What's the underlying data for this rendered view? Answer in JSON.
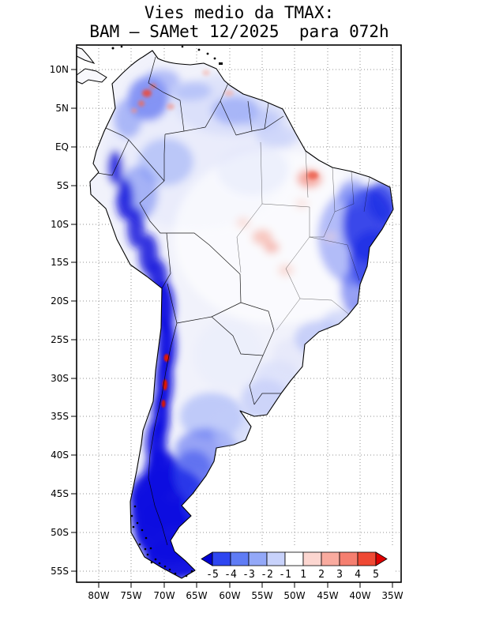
{
  "title": {
    "line1": "Vies medio da TMAX:",
    "line2": "BAM – SAMet 12/2025  para 072h"
  },
  "axes": {
    "lat_ticks": [
      "10N",
      "5N",
      "EQ",
      "5S",
      "10S",
      "15S",
      "20S",
      "25S",
      "30S",
      "35S",
      "40S",
      "45S",
      "50S",
      "55S"
    ],
    "lon_ticks": [
      "80W",
      "75W",
      "70W",
      "65W",
      "60W",
      "55W",
      "50W",
      "45W",
      "40W",
      "35W"
    ]
  },
  "colorbar": {
    "labels": [
      "-5",
      "-4",
      "-3",
      "-2",
      "-1",
      "1",
      "2",
      "3",
      "4",
      "5"
    ],
    "colors": [
      "#0000d2",
      "#2e46f0",
      "#5f7cf5",
      "#93a8f8",
      "#c8d2fb",
      "#ffffff",
      "#fcd6d0",
      "#f9ab9f",
      "#f57f70",
      "#ef4934",
      "#e00000"
    ]
  },
  "chart_data": {
    "type": "heatmap",
    "title": "Vies medio da TMAX: BAM – SAMet 12/2025 para 072h",
    "variable": "mean bias of daily maximum temperature (TMAX)",
    "model": "BAM",
    "reference": "SAMet",
    "month": "12/2025",
    "forecast_lead": "072h",
    "region": "South America",
    "x_ticks": [
      "80W",
      "75W",
      "70W",
      "65W",
      "60W",
      "55W",
      "50W",
      "45W",
      "40W",
      "35W"
    ],
    "y_ticks": [
      "10N",
      "5N",
      "EQ",
      "5S",
      "10S",
      "15S",
      "20S",
      "25S",
      "30S",
      "35S",
      "40S",
      "45S",
      "50S",
      "55S"
    ],
    "contour_levels": [
      -5,
      -4,
      -3,
      -2,
      -1,
      1,
      2,
      3,
      4,
      5
    ],
    "palette": [
      "#0000d2",
      "#2e46f0",
      "#5f7cf5",
      "#93a8f8",
      "#c8d2fb",
      "#ffffff",
      "#fcd6d0",
      "#f9ab9f",
      "#f57f70",
      "#ef4934",
      "#e00000"
    ],
    "legend_position": "bottom-center",
    "grid": "dotted 5-degree graticule",
    "field_summary": [
      {
        "area": "Andes cordillera from Colombia to Tierra del Fuego",
        "bias": "< -5"
      },
      {
        "area": "Patagonia and southern Chile/Argentina (south of ~38S)",
        "bias": "-4 to < -5"
      },
      {
        "area": "Eastern and northeastern Brazil interior",
        "bias": "-2 to -5"
      },
      {
        "area": "Northern Colombia / Venezuela highlands",
        "bias": "-1 to -4 with scattered warm spots of +1 to +3"
      },
      {
        "area": "Central Amazonia and central Brazil",
        "bias": "-1 to +1 (near neutral)"
      },
      {
        "area": "Patches in Maranhão/Tocantins and northern Mato Grosso",
        "bias": "+1 to +3"
      },
      {
        "area": "Small spots along subtropical Andes (27S–33S)",
        "bias": "> +4"
      },
      {
        "area": "Argentine pampas (30S–38S)",
        "bias": "-1 to -3"
      }
    ]
  }
}
